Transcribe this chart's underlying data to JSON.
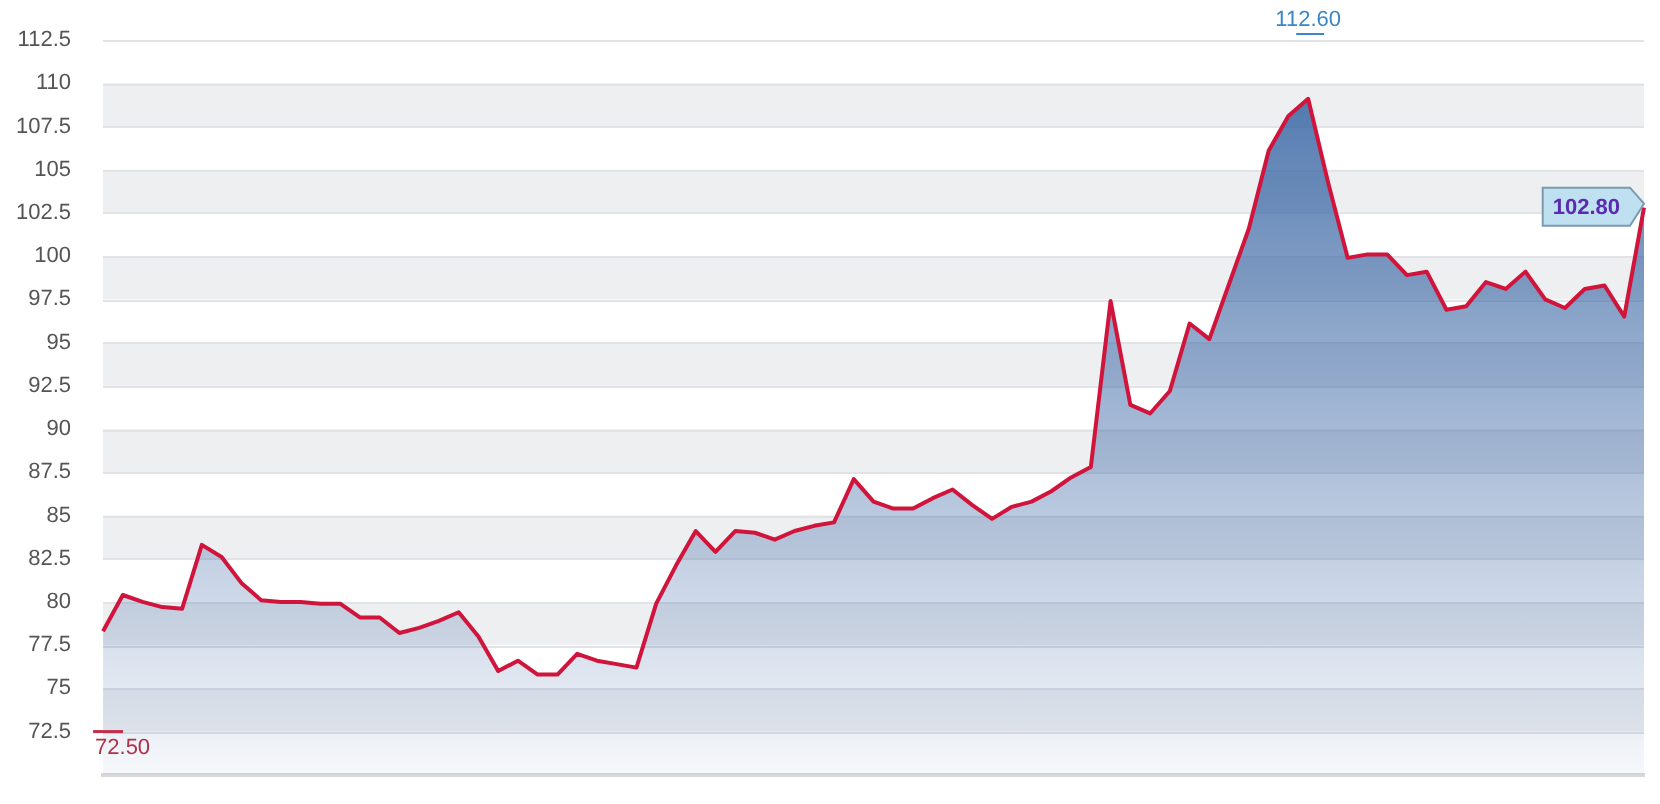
{
  "chart_data": {
    "type": "area",
    "categories": [
      null,
      null,
      null,
      null,
      null,
      null,
      null,
      null,
      null,
      null,
      null,
      null,
      null,
      null,
      null,
      null,
      null,
      null,
      null,
      null,
      null,
      null,
      null,
      null,
      null,
      null,
      null,
      null,
      null,
      null,
      null,
      null,
      null,
      null,
      null,
      null,
      null,
      null,
      null,
      null,
      null,
      null,
      null,
      null,
      null,
      null,
      null,
      null,
      null,
      null,
      null,
      null,
      null,
      null,
      null,
      null,
      null,
      null,
      null,
      null,
      null,
      null,
      null,
      null,
      null,
      null,
      null,
      null,
      null,
      null,
      null,
      null,
      null,
      null,
      null,
      null,
      null,
      null,
      null
    ],
    "series": [
      {
        "color": "#d0143c",
        "values": [
          78.3,
          80.4,
          80.0,
          79.7,
          79.6,
          83.3,
          82.6,
          81.1,
          80.1,
          80.0,
          80.0,
          79.9,
          79.9,
          79.1,
          79.1,
          78.2,
          78.5,
          78.9,
          79.4,
          78.0,
          76.0,
          76.6,
          75.8,
          75.8,
          77.0,
          76.6,
          76.4,
          76.2,
          79.9,
          82.1,
          84.1,
          82.9,
          84.1,
          84.0,
          83.6,
          84.1,
          84.4,
          84.6,
          87.1,
          85.8,
          85.4,
          85.4,
          86.0,
          86.5,
          85.6,
          84.8,
          85.5,
          85.8,
          86.4,
          87.2,
          87.8,
          97.4,
          91.4,
          90.9,
          92.2,
          96.1,
          95.2,
          98.4,
          101.6,
          106.1,
          108.1,
          109.1,
          104.3,
          99.9,
          100.1,
          100.1,
          98.9,
          99.1,
          96.9,
          97.1,
          98.5,
          98.1,
          99.1,
          97.5,
          97.0,
          98.1,
          98.3,
          96.5,
          102.8
        ]
      }
    ],
    "ylim": [
      70,
      112.5
    ],
    "yticks": [
      72.5,
      75,
      77.5,
      80,
      82.5,
      85,
      87.5,
      90,
      92.5,
      95,
      97.5,
      100,
      102.5,
      105,
      107.5,
      110,
      112.5
    ],
    "grid": "y",
    "tick_labels": "y",
    "legend": false,
    "marker": "none",
    "annotations": [
      "112.60",
      "72.50",
      "102.80"
    ]
  }
}
